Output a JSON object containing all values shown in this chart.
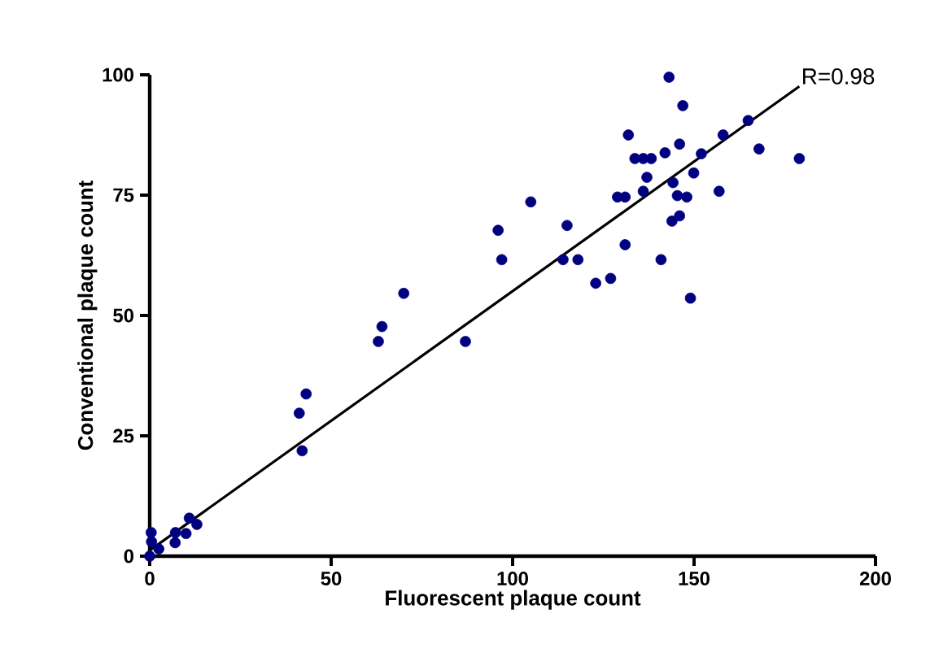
{
  "chart_data": {
    "type": "scatter",
    "xlabel": "Fluorescent plaque count",
    "ylabel": "Conventional plaque count",
    "xlim": [
      0,
      200
    ],
    "ylim": [
      0,
      100
    ],
    "xticks": [
      0,
      50,
      100,
      150,
      200
    ],
    "yticks": [
      0,
      25,
      50,
      75,
      100
    ],
    "marker": "circle",
    "annotations": [
      {
        "text": "R=0.98",
        "x": 179,
        "y": 97.6
      }
    ],
    "series": [
      {
        "color": "#000080",
        "x": [
          0,
          0.4,
          0.5,
          2.5,
          7,
          7.1,
          10,
          10.9,
          13,
          41.2,
          43.1,
          42,
          63,
          64,
          70,
          87,
          96,
          97,
          105,
          115,
          113.9,
          118,
          122.9,
          127,
          128.9,
          131,
          131,
          131.9,
          133.7,
          136,
          136,
          137,
          138.2,
          140.9,
          142,
          143.1,
          143.9,
          144.2,
          145.4,
          146,
          146,
          146.9,
          148,
          149,
          149.9,
          152,
          156.9,
          158,
          164.9,
          167.9,
          179
        ],
        "values": [
          0,
          4.9,
          3,
          1.5,
          2.8,
          4.9,
          4.7,
          7.9,
          6.6,
          29.7,
          33.7,
          21.9,
          44.6,
          47.7,
          54.6,
          44.6,
          67.7,
          61.6,
          73.6,
          68.7,
          61.6,
          61.6,
          56.7,
          57.7,
          74.6,
          74.6,
          64.7,
          87.5,
          82.6,
          82.6,
          75.8,
          78.7,
          82.6,
          61.6,
          83.8,
          99.5,
          69.6,
          77.6,
          74.9,
          85.6,
          70.7,
          93.6,
          74.6,
          53.6,
          79.6,
          83.6,
          75.8,
          87.5,
          90.5,
          84.6,
          82.6
        ]
      },
      {
        "type": "line",
        "color": "#000000",
        "marker": "none",
        "line_style": "solid",
        "x": [
          0,
          179
        ],
        "values": [
          1.2,
          97.6
        ]
      }
    ]
  }
}
